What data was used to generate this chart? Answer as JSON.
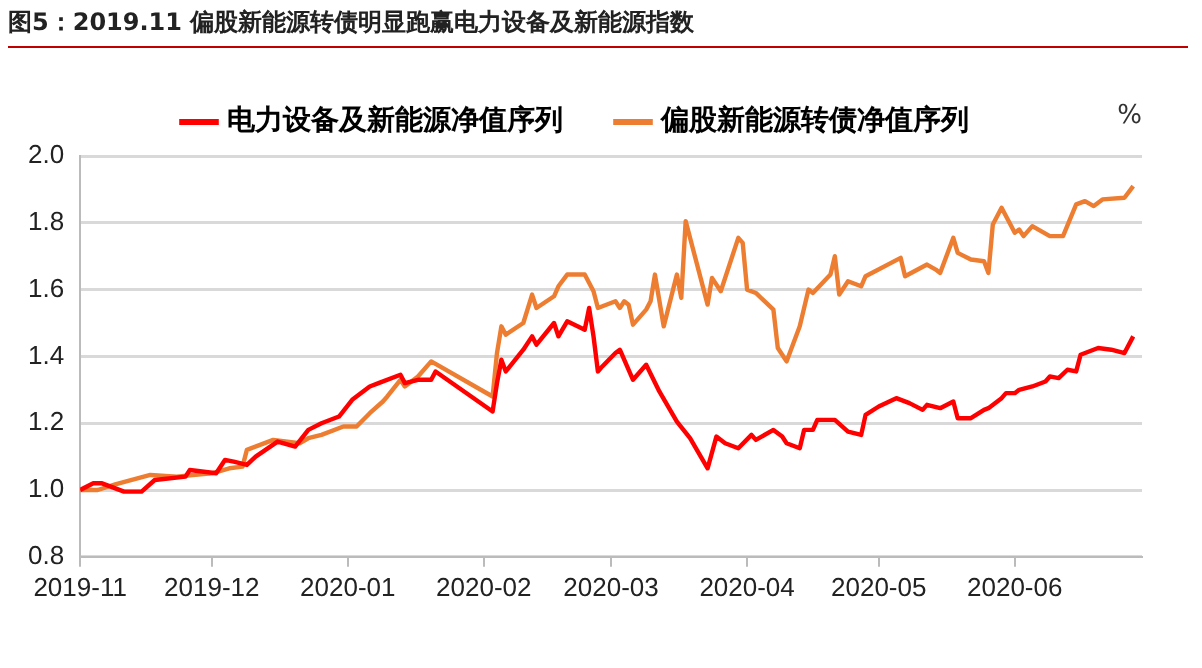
{
  "chart_data": {
    "type": "line",
    "title": "图5：2019.11 偏股新能源转债明显跑赢电力设备及新能源指数",
    "ylabel": "%",
    "xlim": [
      "2019-11-01",
      "2020-06-30"
    ],
    "xticks": [
      "2019-11",
      "2019-12",
      "2020-01",
      "2020-02",
      "2020-03",
      "2020-04",
      "2020-05",
      "2020-06"
    ],
    "ylim": [
      0.8,
      2.0
    ],
    "yticks": [
      0.8,
      {
        "value": 1,
        "label": "1.0"
      },
      1.2,
      1.4,
      1.6,
      1.8,
      {
        "value": 2,
        "label": "2.0"
      }
    ],
    "grid": "y",
    "legend": "top",
    "marker": "none",
    "line_style": "solid",
    "series": [
      {
        "name": "电力设备及新能源净值序列",
        "color": "#ff0000",
        "x": [
          "2019-11-01",
          "2019-11-04",
          "2019-11-06",
          "2019-11-11",
          "2019-11-15",
          "2019-11-18",
          "2019-11-25",
          "2019-11-26",
          "2019-12-02",
          "2019-12-04",
          "2019-12-06",
          "2019-12-09",
          "2019-12-11",
          "2019-12-16",
          "2019-12-20",
          "2019-12-23",
          "2019-12-26",
          "2019-12-30",
          "2020-01-02",
          "2020-01-06",
          "2020-01-08",
          "2020-01-13",
          "2020-01-14",
          "2020-01-17",
          "2020-01-20",
          "2020-01-21",
          "2020-02-03",
          "2020-02-04",
          "2020-02-05",
          "2020-02-06",
          "2020-02-10",
          "2020-02-12",
          "2020-02-13",
          "2020-02-17",
          "2020-02-18",
          "2020-02-20",
          "2020-02-24",
          "2020-02-25",
          "2020-02-26",
          "2020-02-27",
          "2020-02-28",
          "2020-03-02",
          "2020-03-03",
          "2020-03-06",
          "2020-03-09",
          "2020-03-12",
          "2020-03-16",
          "2020-03-19",
          "2020-03-23",
          "2020-03-25",
          "2020-03-27",
          "2020-03-30",
          "2020-04-02",
          "2020-04-03",
          "2020-04-07",
          "2020-04-09",
          "2020-04-10",
          "2020-04-13",
          "2020-04-14",
          "2020-04-16",
          "2020-04-17",
          "2020-04-21",
          "2020-04-24",
          "2020-04-27",
          "2020-04-28",
          "2020-05-01",
          "2020-05-05",
          "2020-05-08",
          "2020-05-11",
          "2020-05-12",
          "2020-05-15",
          "2020-05-18",
          "2020-05-19",
          "2020-05-22",
          "2020-05-25",
          "2020-05-26",
          "2020-05-29",
          "2020-05-30",
          "2020-06-01",
          "2020-06-02",
          "2020-06-05",
          "2020-06-08",
          "2020-06-09",
          "2020-06-11",
          "2020-06-13",
          "2020-06-15",
          "2020-06-16",
          "2020-06-20",
          "2020-06-23",
          "2020-06-26",
          "2020-06-28"
        ],
        "values": [
          1.0,
          1.02,
          1.02,
          0.995,
          0.995,
          1.03,
          1.04,
          1.06,
          1.05,
          1.09,
          1.085,
          1.075,
          1.1,
          1.145,
          1.13,
          1.18,
          1.2,
          1.22,
          1.27,
          1.31,
          1.32,
          1.345,
          1.32,
          1.33,
          1.33,
          1.355,
          1.235,
          1.32,
          1.39,
          1.355,
          1.42,
          1.46,
          1.435,
          1.5,
          1.46,
          1.505,
          1.48,
          1.545,
          1.46,
          1.355,
          1.37,
          1.41,
          1.42,
          1.33,
          1.375,
          1.295,
          1.205,
          1.155,
          1.065,
          1.16,
          1.14,
          1.125,
          1.165,
          1.15,
          1.18,
          1.16,
          1.14,
          1.125,
          1.18,
          1.18,
          1.21,
          1.21,
          1.175,
          1.165,
          1.225,
          1.25,
          1.275,
          1.26,
          1.24,
          1.255,
          1.245,
          1.265,
          1.215,
          1.215,
          1.24,
          1.245,
          1.275,
          1.29,
          1.29,
          1.3,
          1.31,
          1.325,
          1.34,
          1.335,
          1.36,
          1.355,
          1.405,
          1.425,
          1.42,
          1.41,
          1.46
        ]
      },
      {
        "name": "偏股新能源转债净值序列",
        "color": "#ed7d31",
        "x": [
          "2019-11-01",
          "2019-11-05",
          "2019-11-09",
          "2019-11-17",
          "2019-11-23",
          "2019-12-01",
          "2019-12-05",
          "2019-12-08",
          "2019-12-09",
          "2019-12-12",
          "2019-12-15",
          "2019-12-21",
          "2019-12-23",
          "2019-12-26",
          "2019-12-31",
          "2020-01-03",
          "2020-01-06",
          "2020-01-09",
          "2020-01-10",
          "2020-01-13",
          "2020-01-14",
          "2020-01-17",
          "2020-01-20",
          "2020-02-03",
          "2020-02-04",
          "2020-02-05",
          "2020-02-06",
          "2020-02-10",
          "2020-02-12",
          "2020-02-13",
          "2020-02-17",
          "2020-02-18",
          "2020-02-20",
          "2020-02-24",
          "2020-02-26",
          "2020-02-27",
          "2020-03-02",
          "2020-03-03",
          "2020-03-04",
          "2020-03-05",
          "2020-03-06",
          "2020-03-09",
          "2020-03-10",
          "2020-03-11",
          "2020-03-13",
          "2020-03-16",
          "2020-03-17",
          "2020-03-18",
          "2020-03-23",
          "2020-03-24",
          "2020-03-26",
          "2020-03-30",
          "2020-03-31",
          "2020-04-01",
          "2020-04-03",
          "2020-04-07",
          "2020-04-08",
          "2020-04-10",
          "2020-04-13",
          "2020-04-15",
          "2020-04-16",
          "2020-04-20",
          "2020-04-21",
          "2020-04-22",
          "2020-04-24",
          "2020-04-27",
          "2020-04-28",
          "2020-05-06",
          "2020-05-07",
          "2020-05-12",
          "2020-05-14",
          "2020-05-15",
          "2020-05-18",
          "2020-05-19",
          "2020-05-22",
          "2020-05-25",
          "2020-05-26",
          "2020-05-27",
          "2020-05-29",
          "2020-06-01",
          "2020-06-02",
          "2020-06-03",
          "2020-06-05",
          "2020-06-09",
          "2020-06-12",
          "2020-06-15",
          "2020-06-17",
          "2020-06-19",
          "2020-06-21",
          "2020-06-26",
          "2020-06-28"
        ],
        "values": [
          1.0,
          1.0,
          1.017,
          1.045,
          1.04,
          1.05,
          1.065,
          1.07,
          1.12,
          1.135,
          1.15,
          1.14,
          1.155,
          1.165,
          1.19,
          1.19,
          1.23,
          1.265,
          1.28,
          1.33,
          1.31,
          1.34,
          1.385,
          1.28,
          1.41,
          1.49,
          1.465,
          1.5,
          1.585,
          1.545,
          1.58,
          1.61,
          1.645,
          1.645,
          1.595,
          1.545,
          1.565,
          1.545,
          1.565,
          1.555,
          1.495,
          1.54,
          1.565,
          1.645,
          1.49,
          1.645,
          1.575,
          1.805,
          1.555,
          1.635,
          1.595,
          1.755,
          1.74,
          1.6,
          1.59,
          1.54,
          1.425,
          1.385,
          1.49,
          1.6,
          1.59,
          1.645,
          1.7,
          1.585,
          1.625,
          1.61,
          1.64,
          1.695,
          1.64,
          1.675,
          1.66,
          1.65,
          1.755,
          1.71,
          1.69,
          1.685,
          1.65,
          1.795,
          1.845,
          1.77,
          1.78,
          1.76,
          1.79,
          1.76,
          1.76,
          1.855,
          1.865,
          1.85,
          1.87,
          1.875,
          1.91
        ]
      }
    ]
  }
}
